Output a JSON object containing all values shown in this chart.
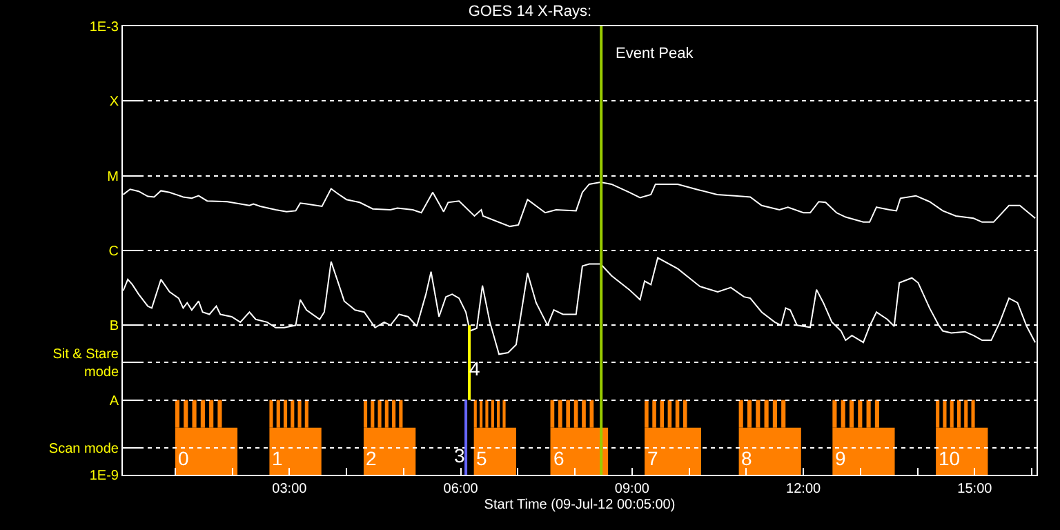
{
  "chart_data": {
    "type": "line",
    "title": "GOES 14 X-Rays:",
    "xlabel": "Start Time (09-Jul-12 00:05:00)",
    "log": "y",
    "grid": "y",
    "line_style": "solid",
    "marker": "none",
    "xlim": [
      0.083,
      16.083
    ],
    "xticks": [
      {
        "value": 1,
        "label": null
      },
      {
        "value": 2,
        "label": null
      },
      {
        "value": 3,
        "label": "03:00"
      },
      {
        "value": 4,
        "label": null
      },
      {
        "value": 5,
        "label": null
      },
      {
        "value": 6,
        "label": "06:00"
      },
      {
        "value": 7,
        "label": null
      },
      {
        "value": 8,
        "label": null
      },
      {
        "value": 9,
        "label": "09:00"
      },
      {
        "value": 10,
        "label": null
      },
      {
        "value": 11,
        "label": null
      },
      {
        "value": 12,
        "label": "12:00"
      },
      {
        "value": 13,
        "label": null
      },
      {
        "value": 14,
        "label": null
      },
      {
        "value": 15,
        "label": "15:00"
      },
      {
        "value": 16,
        "label": null
      }
    ],
    "ylim": [
      1e-09,
      0.001
    ],
    "yticks": [
      {
        "value": 1e-09,
        "label": "1E-9"
      },
      {
        "value": 2.3e-09,
        "label": "Scan mode"
      },
      {
        "value": 1e-08,
        "label": "A"
      },
      {
        "value": 3.2e-08,
        "label": "Sit & Stare\nmode"
      },
      {
        "value": 1e-07,
        "label": "B"
      },
      {
        "value": 1e-06,
        "label": "C"
      },
      {
        "value": 1e-05,
        "label": "M"
      },
      {
        "value": 0.0001,
        "label": "X"
      },
      {
        "value": 0.001,
        "label": "1E-3"
      }
    ],
    "series": [
      {
        "color": "#ffffff",
        "x": [
          0.09,
          0.21,
          0.36,
          0.52,
          0.63,
          0.75,
          0.9,
          1.14,
          1.29,
          1.41,
          1.56,
          1.91,
          2.3,
          2.37,
          2.49,
          2.76,
          2.95,
          3.11,
          3.19,
          3.3,
          3.57,
          3.73,
          3.84,
          4.0,
          4.23,
          4.46,
          4.77,
          4.89,
          5.16,
          5.31,
          5.51,
          5.7,
          5.78,
          5.97,
          6.24,
          6.36,
          6.39,
          6.86,
          7.01,
          7.17,
          7.48,
          7.67,
          8.02,
          8.13,
          8.25,
          8.45,
          8.64,
          8.95,
          9.14,
          9.33,
          9.41,
          9.8,
          10.19,
          10.49,
          10.8,
          11.07,
          11.27,
          11.58,
          11.73,
          12.0,
          12.12,
          12.27,
          12.39,
          12.58,
          12.74,
          13.05,
          13.16,
          13.28,
          13.51,
          13.63,
          13.7,
          13.97,
          14.21,
          14.44,
          14.67,
          14.98,
          15.13,
          15.33,
          15.6,
          15.79,
          16.06
        ],
        "values": [
          5.6e-06,
          6.6e-06,
          6.2e-06,
          5.3e-06,
          5.2e-06,
          6.3e-06,
          6e-06,
          5.2e-06,
          5e-06,
          5.4e-06,
          4.6e-06,
          4.5e-06,
          4e-06,
          4.2e-06,
          3.9e-06,
          3.5e-06,
          3.3e-06,
          3.4e-06,
          4.3e-06,
          4.2e-06,
          3.9e-06,
          6.7e-06,
          5.8e-06,
          4.8e-06,
          4.4e-06,
          3.6e-06,
          3.5e-06,
          3.7e-06,
          3.5e-06,
          3.2e-06,
          6e-06,
          3.3e-06,
          4.4e-06,
          4.6e-06,
          2.9e-06,
          3.5e-06,
          2.9e-06,
          2.1e-06,
          2.2e-06,
          4.8e-06,
          3.2e-06,
          3.5e-06,
          3.4e-06,
          6e-06,
          7.7e-06,
          8.2e-06,
          7.7e-06,
          6e-06,
          5.1e-06,
          5.6e-06,
          7.7e-06,
          7.7e-06,
          6.4e-06,
          5.6e-06,
          5.4e-06,
          5.2e-06,
          4e-06,
          3.5e-06,
          3.8e-06,
          3.2e-06,
          3.2e-06,
          4.5e-06,
          4.4e-06,
          3.2e-06,
          2.8e-06,
          2.4e-06,
          2.4e-06,
          3.8e-06,
          3.5e-06,
          3.4e-06,
          5e-06,
          5.4e-06,
          4.5e-06,
          3.4e-06,
          2.9e-06,
          2.7e-06,
          2.4e-06,
          2.4e-06,
          4e-06,
          4e-06,
          2.7e-06
        ]
      },
      {
        "color": "#ffffff",
        "x": [
          0.09,
          0.17,
          0.25,
          0.36,
          0.52,
          0.59,
          0.75,
          0.9,
          1.06,
          1.14,
          1.21,
          1.29,
          1.41,
          1.48,
          1.6,
          1.72,
          1.79,
          1.99,
          2.14,
          2.3,
          2.41,
          2.61,
          2.76,
          2.91,
          3.11,
          3.19,
          3.3,
          3.53,
          3.61,
          3.73,
          3.84,
          3.96,
          4.15,
          4.31,
          4.5,
          4.66,
          4.77,
          4.92,
          5.08,
          5.23,
          5.39,
          5.48,
          5.62,
          5.74,
          5.85,
          5.97,
          6.09,
          6.16,
          6.28,
          6.38,
          6.51,
          6.67,
          6.83,
          6.97,
          7.17,
          7.32,
          7.52,
          7.63,
          7.79,
          8.02,
          8.13,
          8.25,
          8.45,
          8.64,
          8.95,
          9.14,
          9.22,
          9.33,
          9.45,
          9.8,
          10.19,
          10.5,
          10.73,
          10.96,
          11.07,
          11.27,
          11.5,
          11.61,
          11.69,
          11.77,
          11.89,
          12.12,
          12.23,
          12.35,
          12.5,
          12.66,
          12.74,
          12.85,
          13.05,
          13.16,
          13.28,
          13.47,
          13.59,
          13.68,
          13.9,
          14.01,
          14.21,
          14.37,
          14.44,
          14.59,
          14.83,
          14.98,
          15.13,
          15.29,
          15.44,
          15.6,
          15.75,
          15.91,
          16.06
        ],
        "values": [
          2.9e-07,
          4.1e-07,
          3.5e-07,
          2.6e-07,
          1.8e-07,
          1.7e-07,
          4.1e-07,
          2.8e-07,
          2.3e-07,
          1.7e-07,
          2e-07,
          1.6e-07,
          2.1e-07,
          1.5e-07,
          1.4e-07,
          1.8e-07,
          1.4e-07,
          1.3e-07,
          1.1e-07,
          1.5e-07,
          1.2e-07,
          1.1e-07,
          9.3e-08,
          9.3e-08,
          1e-07,
          2.2e-07,
          1.6e-07,
          1.2e-07,
          1.5e-07,
          7.1e-07,
          4e-07,
          2.1e-07,
          1.6e-07,
          1.5e-07,
          9.3e-08,
          1.1e-07,
          1e-07,
          1.4e-07,
          1.3e-07,
          9.7e-08,
          2.6e-07,
          5.2e-07,
          1.3e-07,
          2.4e-07,
          2.6e-07,
          2.3e-07,
          1.5e-07,
          8.4e-08,
          9.1e-08,
          3.4e-07,
          1.1e-07,
          4.1e-08,
          4.3e-08,
          5.5e-08,
          5e-07,
          2e-07,
          1e-07,
          1.6e-07,
          1.4e-07,
          1.4e-07,
          6.2e-07,
          6.6e-07,
          6.6e-07,
          4.6e-07,
          3e-07,
          2.2e-07,
          3.9e-07,
          3.5e-07,
          8e-07,
          5.7e-07,
          3.3e-07,
          2.8e-07,
          3.2e-07,
          2.4e-07,
          2.3e-07,
          1.5e-07,
          1.1e-07,
          1e-07,
          1.7e-07,
          1.6e-07,
          1e-07,
          9.4e-08,
          3e-07,
          2e-07,
          1.1e-07,
          8.4e-08,
          6.3e-08,
          7.3e-08,
          5.9e-08,
          9.7e-08,
          1.5e-07,
          1.2e-07,
          9.7e-08,
          3.7e-07,
          4.3e-07,
          3.7e-07,
          1.7e-07,
          1e-07,
          8.4e-08,
          7.9e-08,
          8.2e-08,
          7.3e-08,
          6.3e-08,
          6.3e-08,
          1.1e-07,
          2.3e-07,
          2e-07,
          9.7e-08,
          5.9e-08
        ]
      }
    ],
    "bands": [
      {
        "axis": "x",
        "from": 1.0,
        "to": 2.09,
        "label": "0",
        "color": "#ff7f00"
      },
      {
        "axis": "x",
        "from": 2.65,
        "to": 3.56,
        "label": "1",
        "color": "#ff7f00"
      },
      {
        "axis": "x",
        "from": 4.3,
        "to": 5.21,
        "label": "2",
        "color": "#ff7f00"
      },
      {
        "axis": "x",
        "from": 6.23,
        "to": 6.97,
        "label": "5",
        "color": "#ff7f00"
      },
      {
        "axis": "x",
        "from": 7.57,
        "to": 8.58,
        "label": "6",
        "color": "#ff7f00"
      },
      {
        "axis": "x",
        "from": 9.22,
        "to": 10.21,
        "label": "7",
        "color": "#ff7f00"
      },
      {
        "axis": "x",
        "from": 10.87,
        "to": 11.96,
        "label": "8",
        "color": "#ff7f00"
      },
      {
        "axis": "x",
        "from": 12.51,
        "to": 13.6,
        "label": "9",
        "color": "#ff7f00"
      },
      {
        "axis": "x",
        "from": 14.32,
        "to": 15.23,
        "label": "10",
        "color": "#ff7f00"
      }
    ],
    "ref_lines": [
      {
        "axis": "x",
        "value": 8.46,
        "label": "Event Peak",
        "color": "#99cc00"
      },
      {
        "axis": "x",
        "value": 6.15,
        "color": "#ffff00"
      },
      {
        "axis": "x",
        "value": 6.09,
        "color": "#6666ff"
      }
    ],
    "annotations": [
      {
        "text": "4",
        "x": 6.25,
        "y": 2.6e-08
      },
      {
        "text": "3",
        "x": 5.97,
        "y": 1.8e-09
      }
    ]
  }
}
